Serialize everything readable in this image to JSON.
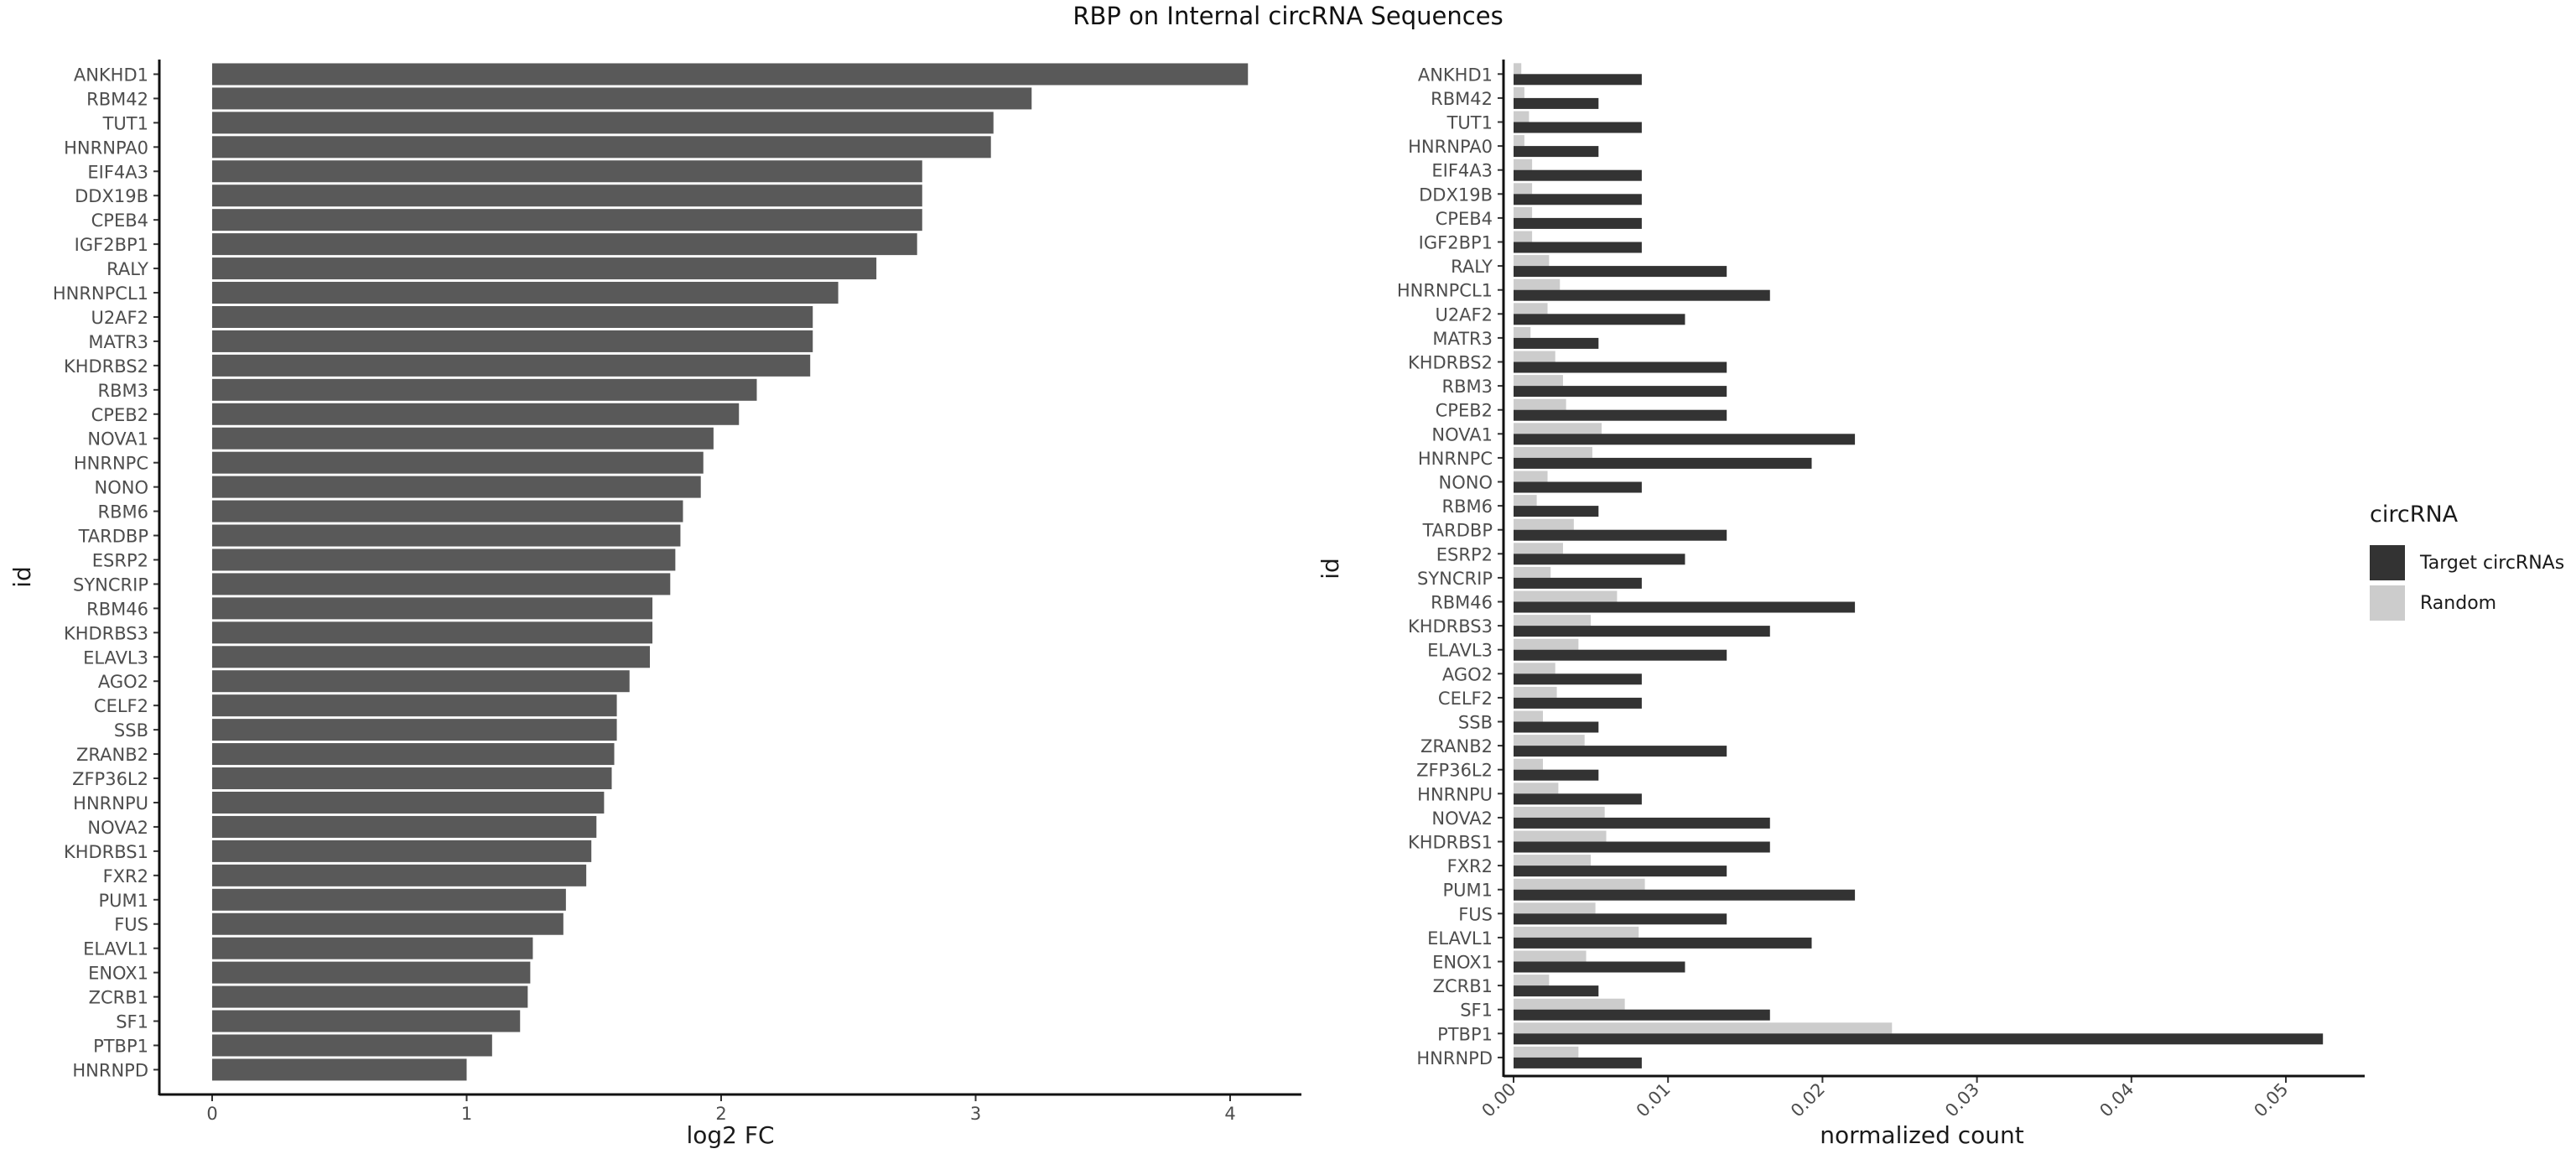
{
  "title": "RBP on Internal circRNA Sequences",
  "legend": {
    "title": "circRNA",
    "items": [
      {
        "label": "Target circRNAs",
        "color": "#333333"
      },
      {
        "label": "Random",
        "color": "#cccccc"
      }
    ]
  },
  "chart_data": [
    {
      "type": "bar",
      "orientation": "horizontal",
      "xlabel": "log2 FC",
      "ylabel": "id",
      "xlim": [
        0,
        4.25
      ],
      "xticks": [
        0,
        1,
        2,
        3,
        4
      ],
      "bar_color": "#595959",
      "categories": [
        "ANKHD1",
        "RBM42",
        "TUT1",
        "HNRNPA0",
        "EIF4A3",
        "DDX19B",
        "CPEB4",
        "IGF2BP1",
        "RALY",
        "HNRNPCL1",
        "U2AF2",
        "MATR3",
        "KHDRBS2",
        "RBM3",
        "CPEB2",
        "NOVA1",
        "HNRNPC",
        "NONO",
        "RBM6",
        "TARDBP",
        "ESRP2",
        "SYNCRIP",
        "RBM46",
        "KHDRBS3",
        "ELAVL3",
        "AGO2",
        "CELF2",
        "SSB",
        "ZRANB2",
        "ZFP36L2",
        "HNRNPU",
        "NOVA2",
        "KHDRBS1",
        "FXR2",
        "PUM1",
        "FUS",
        "ELAVL1",
        "ENOX1",
        "ZCRB1",
        "SF1",
        "PTBP1",
        "HNRNPD"
      ],
      "values": [
        4.07,
        3.22,
        3.07,
        3.06,
        2.79,
        2.79,
        2.79,
        2.77,
        2.61,
        2.46,
        2.36,
        2.36,
        2.35,
        2.14,
        2.07,
        1.97,
        1.93,
        1.92,
        1.85,
        1.84,
        1.82,
        1.8,
        1.73,
        1.73,
        1.72,
        1.64,
        1.59,
        1.59,
        1.58,
        1.57,
        1.54,
        1.51,
        1.49,
        1.47,
        1.39,
        1.38,
        1.26,
        1.25,
        1.24,
        1.21,
        1.1,
        1.0
      ]
    },
    {
      "type": "bar",
      "orientation": "horizontal",
      "grouped": true,
      "xlabel": "normalized count",
      "ylabel": "id",
      "xlim": [
        -0.0005,
        0.055
      ],
      "xticks": [
        0.0,
        0.01,
        0.02,
        0.03,
        0.04,
        0.05
      ],
      "xtick_labels": [
        "0.00",
        "0.01",
        "0.02",
        "0.03",
        "0.04",
        "0.05"
      ],
      "categories": [
        "ANKHD1",
        "RBM42",
        "TUT1",
        "HNRNPA0",
        "EIF4A3",
        "DDX19B",
        "CPEB4",
        "IGF2BP1",
        "RALY",
        "HNRNPCL1",
        "U2AF2",
        "MATR3",
        "KHDRBS2",
        "RBM3",
        "CPEB2",
        "NOVA1",
        "HNRNPC",
        "NONO",
        "RBM6",
        "TARDBP",
        "ESRP2",
        "SYNCRIP",
        "RBM46",
        "KHDRBS3",
        "ELAVL3",
        "AGO2",
        "CELF2",
        "SSB",
        "ZRANB2",
        "ZFP36L2",
        "HNRNPU",
        "NOVA2",
        "KHDRBS1",
        "FXR2",
        "PUM1",
        "FUS",
        "ELAVL1",
        "ENOX1",
        "ZCRB1",
        "SF1",
        "PTBP1",
        "HNRNPD"
      ],
      "series": [
        {
          "name": "Target circRNAs",
          "color": "#333333",
          "values": [
            0.0083,
            0.0055,
            0.0083,
            0.0055,
            0.0083,
            0.0083,
            0.0083,
            0.0083,
            0.0138,
            0.0166,
            0.0111,
            0.0055,
            0.0138,
            0.0138,
            0.0138,
            0.0221,
            0.0193,
            0.0083,
            0.0055,
            0.0138,
            0.0111,
            0.0083,
            0.0221,
            0.0166,
            0.0138,
            0.0083,
            0.0083,
            0.0055,
            0.0138,
            0.0055,
            0.0083,
            0.0166,
            0.0166,
            0.0138,
            0.0221,
            0.0138,
            0.0193,
            0.0111,
            0.0055,
            0.0166,
            0.0524,
            0.0083
          ]
        },
        {
          "name": "Random",
          "color": "#cccccc",
          "values": [
            0.0005,
            0.0007,
            0.001,
            0.0007,
            0.0012,
            0.0012,
            0.0012,
            0.0012,
            0.0023,
            0.003,
            0.0022,
            0.0011,
            0.0027,
            0.0032,
            0.0034,
            0.0057,
            0.0051,
            0.0022,
            0.0015,
            0.0039,
            0.0032,
            0.0024,
            0.0067,
            0.005,
            0.0042,
            0.0027,
            0.0028,
            0.0019,
            0.0046,
            0.0019,
            0.0029,
            0.0059,
            0.006,
            0.005,
            0.0085,
            0.0053,
            0.0081,
            0.0047,
            0.0023,
            0.0072,
            0.0245,
            0.0042
          ]
        }
      ]
    }
  ]
}
